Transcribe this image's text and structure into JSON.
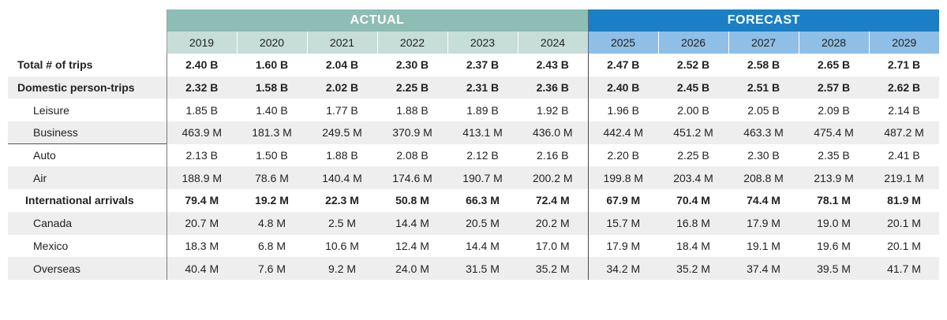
{
  "chart_data": {
    "type": "table",
    "groups": [
      {
        "label": "ACTUAL",
        "years": [
          "2019",
          "2020",
          "2021",
          "2022",
          "2023",
          "2024"
        ]
      },
      {
        "label": "FORECAST",
        "years": [
          "2025",
          "2026",
          "2027",
          "2028",
          "2029"
        ]
      }
    ],
    "rows": [
      {
        "label": "Total # of trips",
        "level": 0,
        "bold": true,
        "values": [
          "2.40 B",
          "1.60 B",
          "2.04 B",
          "2.30 B",
          "2.37 B",
          "2.43 B",
          "2.47 B",
          "2.52 B",
          "2.58 B",
          "2.65 B",
          "2.71 B"
        ]
      },
      {
        "label": "Domestic person-trips",
        "level": 0,
        "bold": true,
        "values": [
          "2.32 B",
          "1.58 B",
          "2.02 B",
          "2.25 B",
          "2.31 B",
          "2.36 B",
          "2.40 B",
          "2.45 B",
          "2.51 B",
          "2.57 B",
          "2.62 B"
        ]
      },
      {
        "label": "Leisure",
        "level": 2,
        "bold": false,
        "values": [
          "1.85 B",
          "1.40 B",
          "1.77 B",
          "1.88 B",
          "1.89 B",
          "1.92 B",
          "1.96 B",
          "2.00 B",
          "2.05 B",
          "2.09 B",
          "2.14 B"
        ]
      },
      {
        "label": "Business",
        "level": 2,
        "bold": false,
        "values": [
          "463.9 M",
          "181.3 M",
          "249.5 M",
          "370.9 M",
          "413.1 M",
          "436.0 M",
          "442.4 M",
          "451.2 M",
          "463.3 M",
          "475.4 M",
          "487.2 M"
        ]
      },
      {
        "label": "Auto",
        "level": 2,
        "bold": false,
        "values": [
          "2.13 B",
          "1.50 B",
          "1.88 B",
          "2.08 B",
          "2.12 B",
          "2.16 B",
          "2.20 B",
          "2.25 B",
          "2.30 B",
          "2.35 B",
          "2.41 B"
        ]
      },
      {
        "label": "Air",
        "level": 2,
        "bold": false,
        "values": [
          "188.9 M",
          "78.6 M",
          "140.4 M",
          "174.6 M",
          "190.7 M",
          "200.2 M",
          "199.8 M",
          "203.4 M",
          "208.8 M",
          "213.9 M",
          "219.1 M"
        ]
      },
      {
        "label": "International arrivals",
        "level": 1,
        "bold": true,
        "values": [
          "79.4 M",
          "19.2 M",
          "22.3 M",
          "50.8 M",
          "66.3 M",
          "72.4 M",
          "67.9 M",
          "70.4 M",
          "74.4 M",
          "78.1 M",
          "81.9 M"
        ]
      },
      {
        "label": "Canada",
        "level": 2,
        "bold": false,
        "values": [
          "20.7 M",
          "4.8 M",
          "2.5 M",
          "14.4 M",
          "20.5 M",
          "20.2 M",
          "15.7 M",
          "16.8 M",
          "17.9 M",
          "19.0 M",
          "20.1 M"
        ]
      },
      {
        "label": "Mexico",
        "level": 2,
        "bold": false,
        "values": [
          "18.3 M",
          "6.8 M",
          "10.6 M",
          "12.4 M",
          "14.4 M",
          "17.0 M",
          "17.9 M",
          "18.4 M",
          "19.1 M",
          "19.6 M",
          "20.1 M"
        ]
      },
      {
        "label": "Overseas",
        "level": 2,
        "bold": false,
        "values": [
          "40.4 M",
          "7.6 M",
          "9.2 M",
          "24.0 M",
          "31.5 M",
          "35.2 M",
          "34.2 M",
          "35.2 M",
          "37.4 M",
          "39.5 M",
          "41.7 M"
        ]
      }
    ],
    "colors": {
      "actual_header": "#8dbdb5",
      "actual_years": "#c6ddd8",
      "forecast_header": "#1a7fc4",
      "forecast_years": "#8fbfe6",
      "row_stripe": "#eeeeee"
    }
  }
}
